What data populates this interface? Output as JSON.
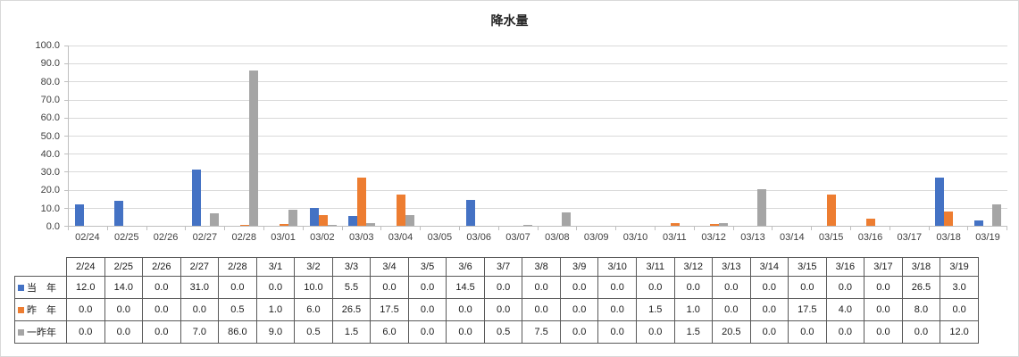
{
  "title": "降水量",
  "colors": {
    "series_blue": "#4472C4",
    "series_orange": "#ED7D31",
    "series_gray": "#A5A5A5",
    "gridline": "#D9D9D9",
    "axis": "#BFBFBF",
    "table_border": "#595959"
  },
  "chart_data": {
    "type": "bar",
    "title": "降水量",
    "categories": [
      "02/24",
      "02/25",
      "02/26",
      "02/27",
      "02/28",
      "03/01",
      "03/02",
      "03/03",
      "03/04",
      "03/05",
      "03/06",
      "03/07",
      "03/08",
      "03/09",
      "03/10",
      "03/11",
      "03/12",
      "03/13",
      "03/14",
      "03/15",
      "03/16",
      "03/17",
      "03/18",
      "03/19"
    ],
    "series": [
      {
        "id": "this-year",
        "name": "当年",
        "color": "#4472C4",
        "values": [
          12.0,
          14.0,
          0.0,
          31.0,
          0.0,
          0.0,
          10.0,
          5.5,
          0.0,
          0.0,
          14.5,
          0.0,
          0.0,
          0.0,
          0.0,
          0.0,
          0.0,
          0.0,
          0.0,
          0.0,
          0.0,
          0.0,
          26.5,
          3.0
        ]
      },
      {
        "id": "last-year",
        "name": "昨年",
        "color": "#ED7D31",
        "values": [
          0.0,
          0.0,
          0.0,
          0.0,
          0.5,
          1.0,
          6.0,
          26.5,
          17.5,
          0.0,
          0.0,
          0.0,
          0.0,
          0.0,
          0.0,
          1.5,
          1.0,
          0.0,
          0.0,
          17.5,
          4.0,
          0.0,
          8.0,
          0.0
        ]
      },
      {
        "id": "two-years-ago",
        "name": "一昨年",
        "color": "#A5A5A5",
        "values": [
          0.0,
          0.0,
          0.0,
          7.0,
          86.0,
          9.0,
          0.5,
          1.5,
          6.0,
          0.0,
          0.0,
          0.5,
          7.5,
          0.0,
          0.0,
          0.0,
          1.5,
          20.5,
          0.0,
          0.0,
          0.0,
          0.0,
          0.0,
          12.0
        ]
      }
    ],
    "xlabel": "",
    "ylabel": "",
    "ylim": [
      0,
      100
    ],
    "ytick_step": 10,
    "y_tick_labels": [
      "100.0",
      "90.0",
      "80.0",
      "70.0",
      "60.0",
      "50.0",
      "40.0",
      "30.0",
      "20.0",
      "10.0",
      "0.0"
    ],
    "grid": true,
    "legend_position": "data-table-row-labels"
  },
  "table": {
    "column_headers": [
      "2/24",
      "2/25",
      "2/26",
      "2/27",
      "2/28",
      "3/1",
      "3/2",
      "3/3",
      "3/4",
      "3/5",
      "3/6",
      "3/7",
      "3/8",
      "3/9",
      "3/10",
      "3/11",
      "3/12",
      "3/13",
      "3/14",
      "3/15",
      "3/16",
      "3/17",
      "3/18",
      "3/19"
    ],
    "rows": [
      {
        "id": "this-year",
        "label": "当　年",
        "key_color": "#4472C4",
        "values": [
          "12.0",
          "14.0",
          "0.0",
          "31.0",
          "0.0",
          "0.0",
          "10.0",
          "5.5",
          "0.0",
          "0.0",
          "14.5",
          "0.0",
          "0.0",
          "0.0",
          "0.0",
          "0.0",
          "0.0",
          "0.0",
          "0.0",
          "0.0",
          "0.0",
          "0.0",
          "26.5",
          "3.0"
        ]
      },
      {
        "id": "last-year",
        "label": "昨　年",
        "key_color": "#ED7D31",
        "values": [
          "0.0",
          "0.0",
          "0.0",
          "0.0",
          "0.5",
          "1.0",
          "6.0",
          "26.5",
          "17.5",
          "0.0",
          "0.0",
          "0.0",
          "0.0",
          "0.0",
          "0.0",
          "1.5",
          "1.0",
          "0.0",
          "0.0",
          "17.5",
          "4.0",
          "0.0",
          "8.0",
          "0.0"
        ]
      },
      {
        "id": "two-years-ago",
        "label": "一昨年",
        "key_color": "#A5A5A5",
        "values": [
          "0.0",
          "0.0",
          "0.0",
          "7.0",
          "86.0",
          "9.0",
          "0.5",
          "1.5",
          "6.0",
          "0.0",
          "0.0",
          "0.5",
          "7.5",
          "0.0",
          "0.0",
          "0.0",
          "1.5",
          "20.5",
          "0.0",
          "0.0",
          "0.0",
          "0.0",
          "0.0",
          "12.0"
        ]
      }
    ]
  }
}
